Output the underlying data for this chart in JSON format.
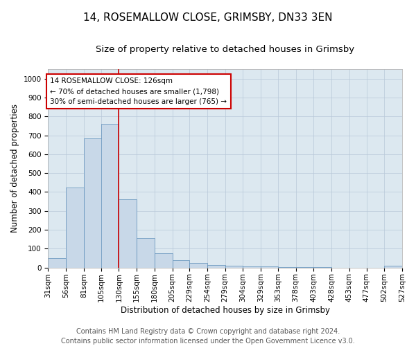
{
  "title": "14, ROSEMALLOW CLOSE, GRIMSBY, DN33 3EN",
  "subtitle": "Size of property relative to detached houses in Grimsby",
  "xlabel": "Distribution of detached houses by size in Grimsby",
  "ylabel": "Number of detached properties",
  "footer_line1": "Contains HM Land Registry data © Crown copyright and database right 2024.",
  "footer_line2": "Contains public sector information licensed under the Open Government Licence v3.0.",
  "annotation_line1": "14 ROSEMALLOW CLOSE: 126sqm",
  "annotation_line2": "← 70% of detached houses are smaller (1,798)",
  "annotation_line3": "30% of semi-detached houses are larger (765) →",
  "bar_left_edges": [
    31,
    56,
    81,
    105,
    130,
    155,
    180,
    205,
    229,
    254,
    279,
    304,
    329,
    353,
    378,
    403,
    428,
    453,
    477,
    502
  ],
  "bar_widths": [
    25,
    25,
    25,
    25,
    25,
    25,
    25,
    24,
    25,
    25,
    25,
    25,
    24,
    25,
    25,
    25,
    25,
    24,
    25,
    25
  ],
  "bar_heights": [
    50,
    425,
    685,
    760,
    360,
    155,
    75,
    38,
    25,
    15,
    10,
    7,
    5,
    3,
    2,
    2,
    0,
    0,
    0,
    8
  ],
  "tick_labels": [
    "31sqm",
    "56sqm",
    "81sqm",
    "105sqm",
    "130sqm",
    "155sqm",
    "180sqm",
    "205sqm",
    "229sqm",
    "254sqm",
    "279sqm",
    "304sqm",
    "329sqm",
    "353sqm",
    "378sqm",
    "403sqm",
    "428sqm",
    "453sqm",
    "477sqm",
    "502sqm",
    "527sqm"
  ],
  "bar_color": "#c8d8e8",
  "bar_edge_color": "#5b8db8",
  "vline_color": "#cc0000",
  "vline_x": 130,
  "annotation_box_color": "#cc0000",
  "annotation_bg_color": "#ffffff",
  "ylim": [
    0,
    1050
  ],
  "xlim": [
    31,
    527
  ],
  "yticks": [
    0,
    100,
    200,
    300,
    400,
    500,
    600,
    700,
    800,
    900,
    1000
  ],
  "grid_color": "#b8c8d8",
  "plot_bg_color": "#dce8f0",
  "title_fontsize": 11,
  "subtitle_fontsize": 9.5,
  "axis_label_fontsize": 8.5,
  "tick_fontsize": 7.5,
  "footer_fontsize": 7,
  "annotation_fontsize": 7.5
}
